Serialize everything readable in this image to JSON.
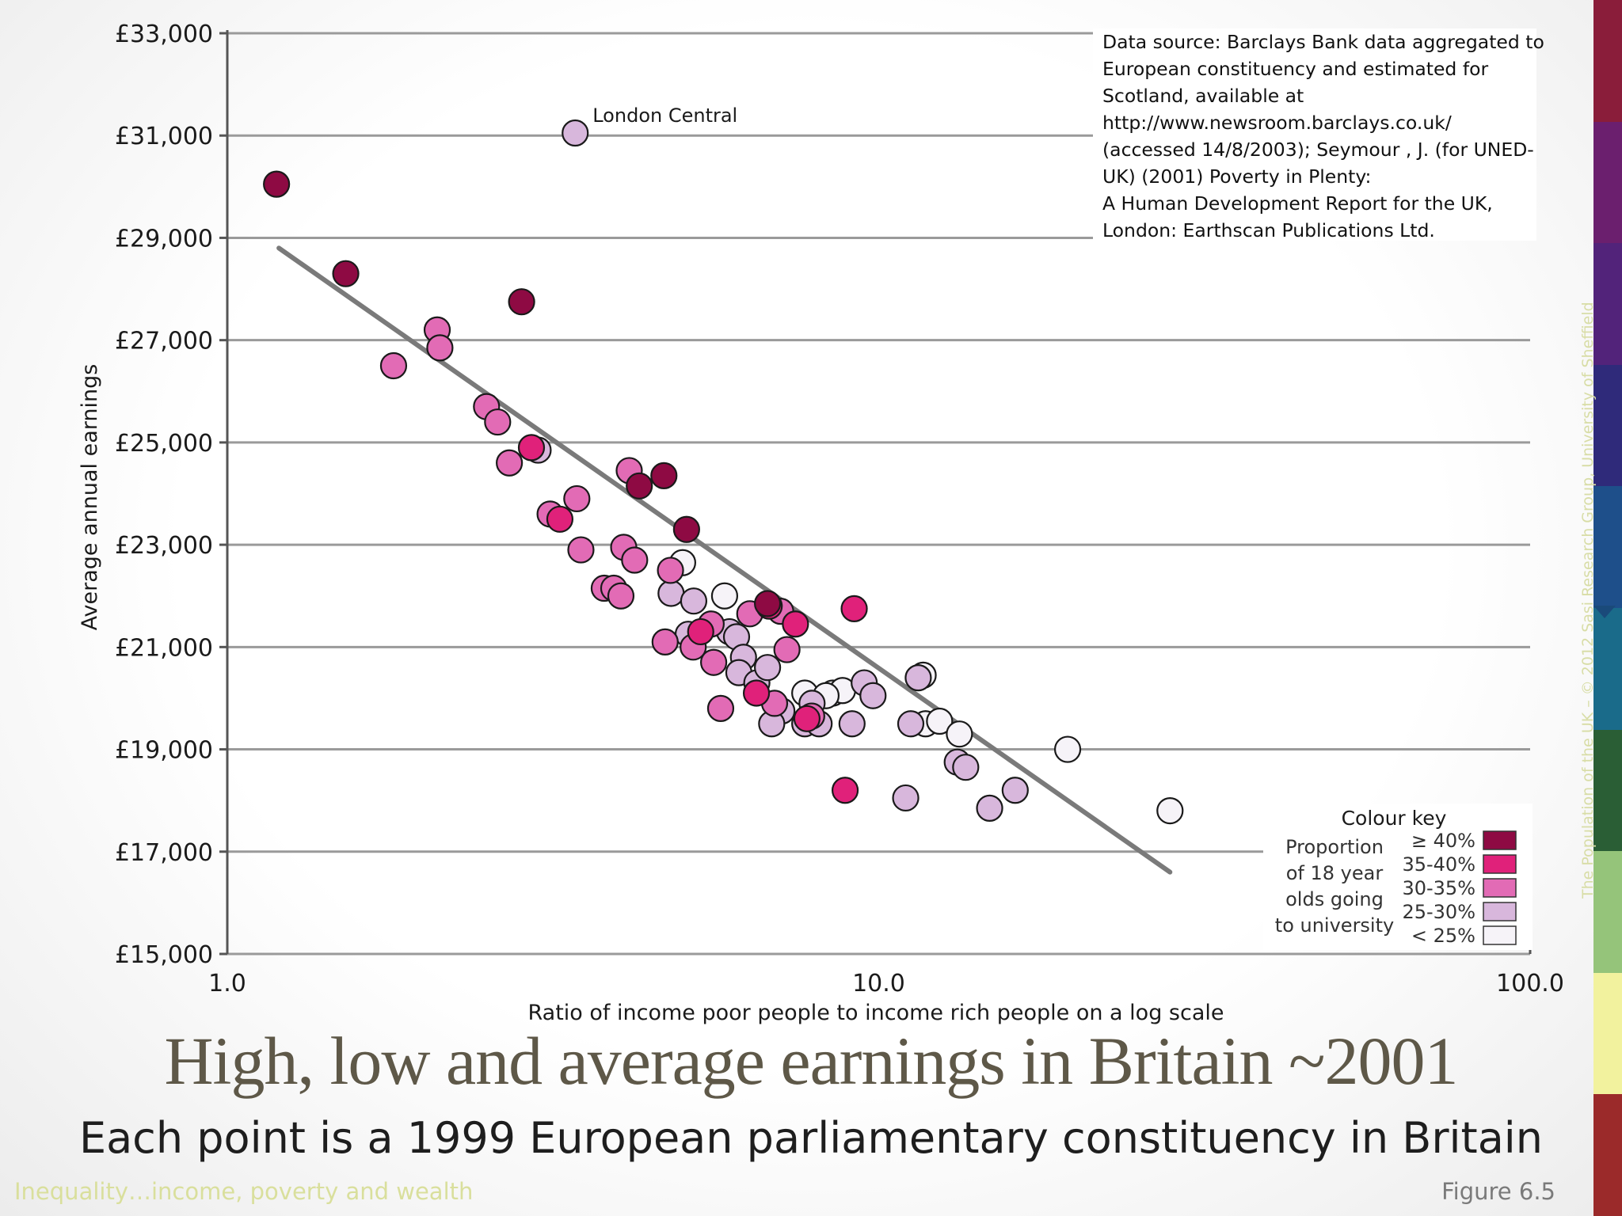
{
  "slide": {
    "title": "High, low and average earnings in Britain ~2001",
    "subtitle": "Each point is a 1999 European parliamentary constituency in Britain",
    "footer_left": "Inequality…income, poverty and wealth",
    "footer_right": "Figure 6.5",
    "vertical_credit": "The Population of the UK – © 2012 Sasi Research Group, University of Sheffield",
    "strip_colors": [
      "#8a1d3a",
      "#6b1f6e",
      "#52237a",
      "#2f2a7a",
      "#1e4f8a",
      "#1a6b8a",
      "#2a5e35",
      "#95c47a",
      "#f2f29e",
      "#9b2a2a"
    ]
  },
  "source_note": {
    "lines": [
      "Data source: Barclays Bank data aggregated to",
      "European constituency and estimated for",
      "Scotland, available at",
      "http://www.newsroom.barclays.co.uk/",
      "(accessed 14/8/2003); Seymour , J. (for UNED-",
      "UK) (2001) Poverty in Plenty:",
      "A Human Development Report for the UK,",
      "London: Earthscan Publications Ltd."
    ]
  },
  "chart_data": {
    "type": "scatter",
    "title": "",
    "xlabel": "Ratio of income poor people to income rich people on a log scale",
    "ylabel": "Average annual earnings",
    "x_scale": "log",
    "xlim": [
      1.0,
      100.0
    ],
    "ylim": [
      15000,
      33000
    ],
    "x_ticks": [
      {
        "value": 1,
        "label": "1.0"
      },
      {
        "value": 10,
        "label": "10.0"
      },
      {
        "value": 100,
        "label": "100.0"
      }
    ],
    "y_ticks": [
      {
        "value": 15000,
        "label": "£15,000"
      },
      {
        "value": 17000,
        "label": "£17,000"
      },
      {
        "value": 19000,
        "label": "£19,000"
      },
      {
        "value": 21000,
        "label": "£21,000"
      },
      {
        "value": 23000,
        "label": "£23,000"
      },
      {
        "value": 25000,
        "label": "£25,000"
      },
      {
        "value": 27000,
        "label": "£27,000"
      },
      {
        "value": 29000,
        "label": "£29,000"
      },
      {
        "value": 31000,
        "label": "£31,000"
      },
      {
        "value": 33000,
        "label": "£33,000"
      }
    ],
    "grid": "horizontal",
    "trend_line": {
      "from": [
        1.2,
        28800
      ],
      "to": [
        28.0,
        16600
      ]
    },
    "annotation": {
      "text": "London Central",
      "x": 3.42,
      "y": 31050
    },
    "colour_key": {
      "title": "Colour key",
      "label_lines": [
        "Proportion",
        "of 18 year",
        "olds going",
        "to university"
      ],
      "placement": "bottom-right",
      "categories": [
        {
          "label": "≥ 40%",
          "color": "#8e0a43"
        },
        {
          "label": "35-40%",
          "color": "#e0217a"
        },
        {
          "label": "30-35%",
          "color": "#e26bb5"
        },
        {
          "label": "25-30%",
          "color": "#d8b7dc"
        },
        {
          "label": "< 25%",
          "color": "#f6f3f8"
        }
      ]
    },
    "points": [
      {
        "x": 1.19,
        "y": 30050,
        "c": 0
      },
      {
        "x": 1.52,
        "y": 28300,
        "c": 0
      },
      {
        "x": 2.83,
        "y": 27750,
        "c": 0
      },
      {
        "x": 4.29,
        "y": 24150,
        "c": 0
      },
      {
        "x": 4.68,
        "y": 24350,
        "c": 0
      },
      {
        "x": 5.07,
        "y": 23300,
        "c": 0
      },
      {
        "x": 6.75,
        "y": 21850,
        "c": 0
      },
      {
        "x": 3.42,
        "y": 31050,
        "c": 3
      },
      {
        "x": 1.8,
        "y": 26500,
        "c": 2
      },
      {
        "x": 2.1,
        "y": 27200,
        "c": 2
      },
      {
        "x": 2.12,
        "y": 26850,
        "c": 2
      },
      {
        "x": 2.5,
        "y": 25700,
        "c": 2
      },
      {
        "x": 2.6,
        "y": 25400,
        "c": 2
      },
      {
        "x": 2.71,
        "y": 24600,
        "c": 2
      },
      {
        "x": 3.13,
        "y": 23600,
        "c": 2
      },
      {
        "x": 3.44,
        "y": 23900,
        "c": 2
      },
      {
        "x": 3.49,
        "y": 22900,
        "c": 2
      },
      {
        "x": 4.14,
        "y": 24450,
        "c": 2
      },
      {
        "x": 4.06,
        "y": 22950,
        "c": 2
      },
      {
        "x": 4.22,
        "y": 22700,
        "c": 2
      },
      {
        "x": 3.79,
        "y": 22150,
        "c": 2
      },
      {
        "x": 3.92,
        "y": 22150,
        "c": 2
      },
      {
        "x": 4.02,
        "y": 22000,
        "c": 2
      },
      {
        "x": 4.7,
        "y": 21100,
        "c": 2
      },
      {
        "x": 5.19,
        "y": 21000,
        "c": 2
      },
      {
        "x": 5.53,
        "y": 21450,
        "c": 2
      },
      {
        "x": 5.58,
        "y": 20700,
        "c": 2
      },
      {
        "x": 5.72,
        "y": 19800,
        "c": 2
      },
      {
        "x": 6.34,
        "y": 21650,
        "c": 2
      },
      {
        "x": 7.07,
        "y": 21700,
        "c": 2
      },
      {
        "x": 7.23,
        "y": 20950,
        "c": 2
      },
      {
        "x": 6.92,
        "y": 19900,
        "c": 2
      },
      {
        "x": 7.89,
        "y": 19650,
        "c": 2
      },
      {
        "x": 4.79,
        "y": 22500,
        "c": 2
      },
      {
        "x": 2.93,
        "y": 24900,
        "c": 1
      },
      {
        "x": 3.24,
        "y": 23500,
        "c": 1
      },
      {
        "x": 5.33,
        "y": 21300,
        "c": 1
      },
      {
        "x": 6.49,
        "y": 20100,
        "c": 1
      },
      {
        "x": 6.79,
        "y": 21800,
        "c": 1
      },
      {
        "x": 7.45,
        "y": 21450,
        "c": 1
      },
      {
        "x": 7.76,
        "y": 19600,
        "c": 1
      },
      {
        "x": 9.17,
        "y": 21750,
        "c": 1
      },
      {
        "x": 8.88,
        "y": 18200,
        "c": 1
      },
      {
        "x": 3.0,
        "y": 24850,
        "c": 3
      },
      {
        "x": 4.8,
        "y": 22050,
        "c": 3
      },
      {
        "x": 5.2,
        "y": 21900,
        "c": 3
      },
      {
        "x": 5.1,
        "y": 21250,
        "c": 3
      },
      {
        "x": 5.9,
        "y": 21300,
        "c": 3
      },
      {
        "x": 6.05,
        "y": 21200,
        "c": 3
      },
      {
        "x": 6.2,
        "y": 20800,
        "c": 3
      },
      {
        "x": 6.1,
        "y": 20500,
        "c": 3
      },
      {
        "x": 6.5,
        "y": 20300,
        "c": 3
      },
      {
        "x": 6.75,
        "y": 20600,
        "c": 3
      },
      {
        "x": 7.1,
        "y": 19750,
        "c": 3
      },
      {
        "x": 6.85,
        "y": 19500,
        "c": 3
      },
      {
        "x": 7.9,
        "y": 19900,
        "c": 3
      },
      {
        "x": 7.7,
        "y": 19500,
        "c": 3
      },
      {
        "x": 8.1,
        "y": 19500,
        "c": 3
      },
      {
        "x": 9.1,
        "y": 19500,
        "c": 3
      },
      {
        "x": 9.5,
        "y": 20300,
        "c": 3
      },
      {
        "x": 9.8,
        "y": 20050,
        "c": 3
      },
      {
        "x": 11.5,
        "y": 20400,
        "c": 3
      },
      {
        "x": 11.0,
        "y": 18050,
        "c": 3
      },
      {
        "x": 11.2,
        "y": 19500,
        "c": 3
      },
      {
        "x": 13.2,
        "y": 18750,
        "c": 3
      },
      {
        "x": 13.6,
        "y": 18650,
        "c": 3
      },
      {
        "x": 14.8,
        "y": 17850,
        "c": 3
      },
      {
        "x": 16.2,
        "y": 18200,
        "c": 3
      },
      {
        "x": 5.0,
        "y": 22650,
        "c": 4
      },
      {
        "x": 5.8,
        "y": 22000,
        "c": 4
      },
      {
        "x": 7.7,
        "y": 20100,
        "c": 4
      },
      {
        "x": 8.5,
        "y": 20100,
        "c": 4
      },
      {
        "x": 8.8,
        "y": 20150,
        "c": 4
      },
      {
        "x": 8.3,
        "y": 20050,
        "c": 4
      },
      {
        "x": 11.7,
        "y": 20450,
        "c": 4
      },
      {
        "x": 11.8,
        "y": 19500,
        "c": 4
      },
      {
        "x": 12.4,
        "y": 19550,
        "c": 4
      },
      {
        "x": 13.3,
        "y": 19300,
        "c": 4
      },
      {
        "x": 19.5,
        "y": 19000,
        "c": 4
      },
      {
        "x": 28.0,
        "y": 17800,
        "c": 4
      }
    ]
  }
}
